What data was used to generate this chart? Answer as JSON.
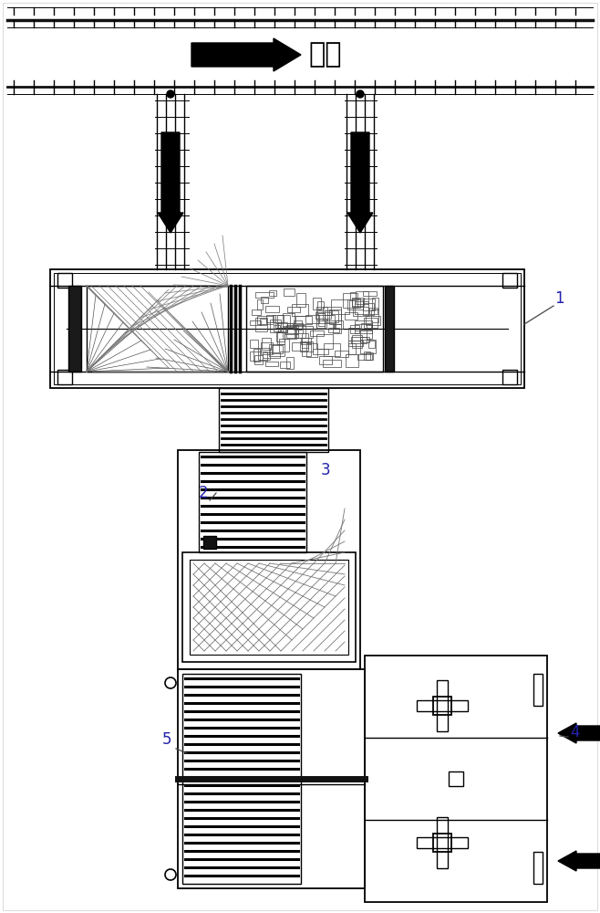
{
  "bg_color": "#ffffff",
  "lc": "#000000",
  "top_text": "上料",
  "label_1": "1",
  "label_2": "2",
  "label_3": "3",
  "label_4": "4",
  "label_5": "5"
}
